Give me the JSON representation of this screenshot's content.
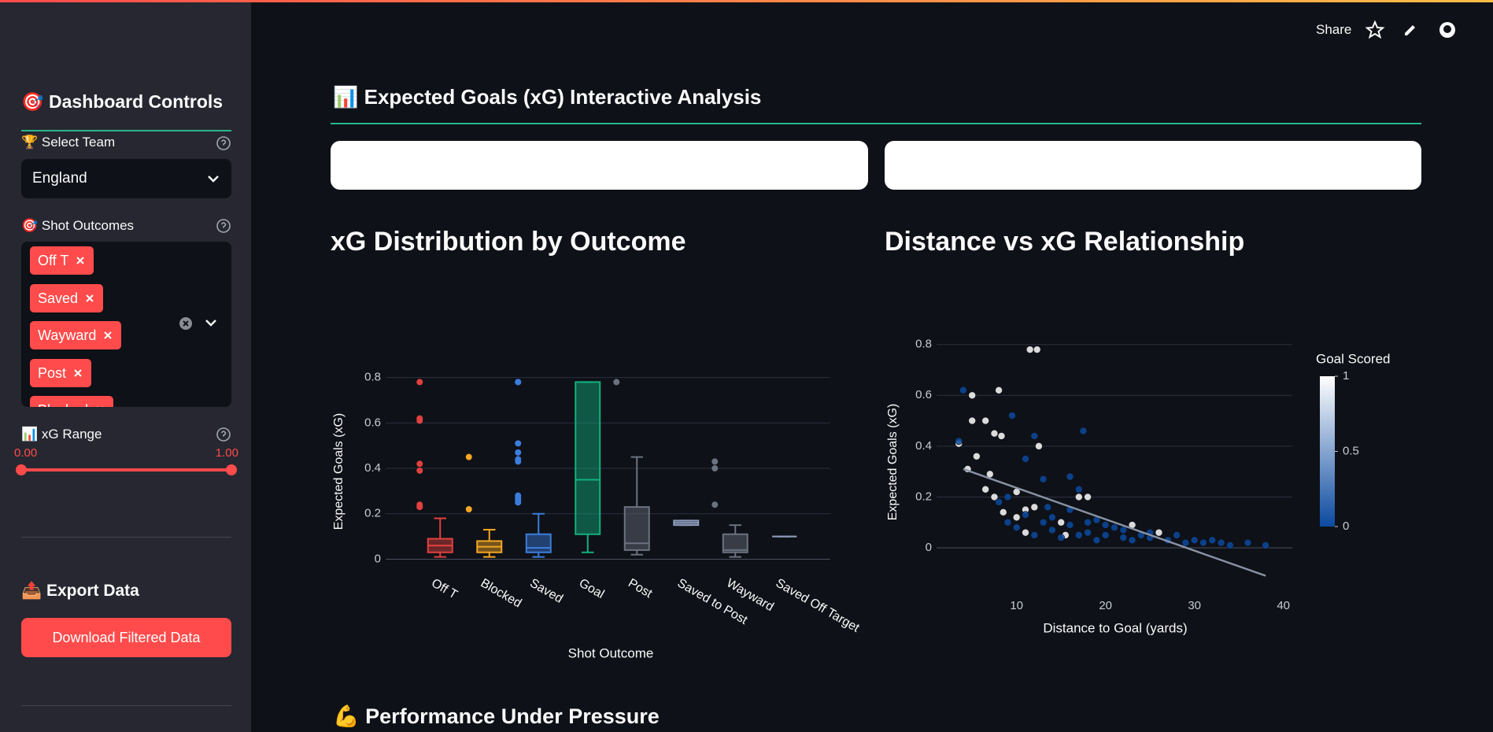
{
  "toolbar": {
    "share": "Share"
  },
  "sidebar": {
    "title": "🎯 Dashboard Controls",
    "select_team": {
      "label": "🏆 Select Team",
      "value": "England"
    },
    "shot_outcomes": {
      "label": "🎯 Shot Outcomes",
      "tags": [
        "Off T",
        "Saved",
        "Wayward",
        "Post",
        "Blocked"
      ]
    },
    "xg_range": {
      "label": "📊 xG Range",
      "range": [
        {
          "value": 0,
          "label": "0.00"
        },
        {
          "value": 1,
          "label": "1.00"
        }
      ]
    },
    "export": {
      "title": "📤 Export Data",
      "button": "Download Filtered Data"
    }
  },
  "main": {
    "title": "📊 Expected Goals (xG) Interactive Analysis",
    "next_section": "💪 Performance Under Pressure"
  },
  "chart_data": [
    {
      "type": "box",
      "title": "xG Distribution by Outcome",
      "x_label": "Shot Outcome",
      "y_label": "Expected Goals (xG)",
      "categories": [
        "Off T",
        "Blocked",
        "Saved",
        "Goal",
        "Post",
        "Saved to Post",
        "Wayward",
        "Saved Off Target"
      ],
      "boxes": [
        {
          "color": "#e0413f",
          "lower": 0.01,
          "q1": 0.03,
          "median": 0.06,
          "q3": 0.09,
          "upper": 0.18,
          "outliers": [
            0.78,
            0.62,
            0.61,
            0.42,
            0.39,
            0.24,
            0.23,
            0.23
          ]
        },
        {
          "color": "#f5a623",
          "lower": 0.01,
          "q1": 0.03,
          "median": 0.055,
          "q3": 0.08,
          "upper": 0.13,
          "outliers": [
            0.45,
            0.22
          ]
        },
        {
          "color": "#3b7ddd",
          "lower": 0.01,
          "q1": 0.03,
          "median": 0.05,
          "q3": 0.11,
          "upper": 0.2,
          "outliers": [
            0.78,
            0.78,
            0.51,
            0.47,
            0.44,
            0.43,
            0.28,
            0.27,
            0.26,
            0.25
          ]
        },
        {
          "color": "#12b07f",
          "lower": 0.03,
          "q1": 0.11,
          "median": 0.35,
          "q3": 0.78,
          "upper": 0.78,
          "outliers": []
        },
        {
          "color": "#6b7280",
          "lower": 0.02,
          "q1": 0.04,
          "median": 0.07,
          "q3": 0.23,
          "upper": 0.45,
          "outliers": [
            0.78
          ]
        },
        {
          "color": "#8a9ab8",
          "lower": 0.15,
          "q1": 0.15,
          "median": 0.16,
          "q3": 0.17,
          "upper": 0.17,
          "outliers": []
        },
        {
          "color": "#6b7280",
          "lower": 0.01,
          "q1": 0.03,
          "median": 0.04,
          "q3": 0.11,
          "upper": 0.15,
          "outliers": [
            0.43,
            0.4,
            0.24
          ]
        },
        {
          "color": "#8a9ab8",
          "lower": 0.1,
          "q1": 0.1,
          "median": 0.1,
          "q3": 0.1,
          "upper": 0.1,
          "outliers": []
        }
      ],
      "ylim": [
        -0.04,
        0.83
      ],
      "yticks": [
        0,
        0.2,
        0.4,
        0.6,
        0.8
      ],
      "grid": true
    },
    {
      "type": "scatter",
      "title": "Distance vs xG Relationship",
      "x_label": "Distance to Goal (yards)",
      "y_label": "Expected Goals (xG)",
      "x": [
        11.5,
        12.3,
        5,
        6.5,
        8,
        7.5,
        8.3,
        5,
        3.5,
        4.5,
        5.5,
        7,
        6.5,
        7.5,
        10,
        12.5,
        11,
        12,
        10,
        15,
        18,
        17,
        15.5,
        23,
        26,
        8.5,
        11,
        4,
        9.5,
        3.5,
        12,
        11,
        17.5,
        16,
        13,
        17,
        8,
        9,
        10,
        12,
        13,
        14,
        14,
        15,
        16,
        17,
        18,
        19,
        20,
        21,
        22,
        23,
        24,
        25,
        27,
        28,
        29,
        30,
        31,
        32,
        33,
        34,
        36,
        38,
        11,
        13.5,
        9,
        19,
        16,
        18,
        20,
        22,
        25
      ],
      "y": [
        0.78,
        0.78,
        0.5,
        0.5,
        0.62,
        0.45,
        0.44,
        0.6,
        0.41,
        0.31,
        0.36,
        0.29,
        0.23,
        0.2,
        0.22,
        0.4,
        0.15,
        0.16,
        0.12,
        0.1,
        0.2,
        0.2,
        0.05,
        0.09,
        0.06,
        0.14,
        0.06,
        0.62,
        0.52,
        0.42,
        0.44,
        0.35,
        0.46,
        0.28,
        0.27,
        0.23,
        0.18,
        0.1,
        0.08,
        0.05,
        0.1,
        0.07,
        0.12,
        0.04,
        0.09,
        0.05,
        0.06,
        0.03,
        0.05,
        0.08,
        0.04,
        0.03,
        0.05,
        0.04,
        0.03,
        0.05,
        0.02,
        0.03,
        0.02,
        0.03,
        0.02,
        0.01,
        0.02,
        0.01,
        0.13,
        0.16,
        0.2,
        0.11,
        0.15,
        0.1,
        0.09,
        0.07,
        0.06
      ],
      "z": [
        1,
        1,
        1,
        1,
        1,
        1,
        1,
        1,
        1,
        1,
        1,
        1,
        1,
        1,
        1,
        1,
        1,
        1,
        1,
        1,
        1,
        1,
        1,
        1,
        1,
        1,
        1,
        0,
        0,
        0,
        0,
        0,
        0,
        0,
        0,
        0,
        0,
        0,
        0,
        0,
        0,
        0,
        0,
        0,
        0,
        0,
        0,
        0,
        0,
        0,
        0,
        0,
        0,
        0,
        0,
        0,
        0,
        0,
        0,
        0,
        0,
        0,
        0,
        0,
        0,
        0,
        0,
        0,
        0,
        0,
        0,
        0,
        0
      ],
      "trend": {
        "x": [
          4,
          38
        ],
        "y": [
          0.31,
          -0.11
        ],
        "color": "#8a93a6"
      },
      "colorscale": [
        "#0b4aa0",
        "#ffffff"
      ],
      "zlim": [
        0,
        1
      ],
      "colorbar_title": "Goal Scored",
      "colorbar_ticks": [
        0,
        0.5,
        1
      ],
      "xlim": [
        1,
        41
      ],
      "xticks": [
        10,
        20,
        30,
        40
      ],
      "ylim": [
        -0.13,
        0.83
      ],
      "yticks": [
        0,
        0.2,
        0.4,
        0.6,
        0.8
      ],
      "grid": true
    }
  ]
}
